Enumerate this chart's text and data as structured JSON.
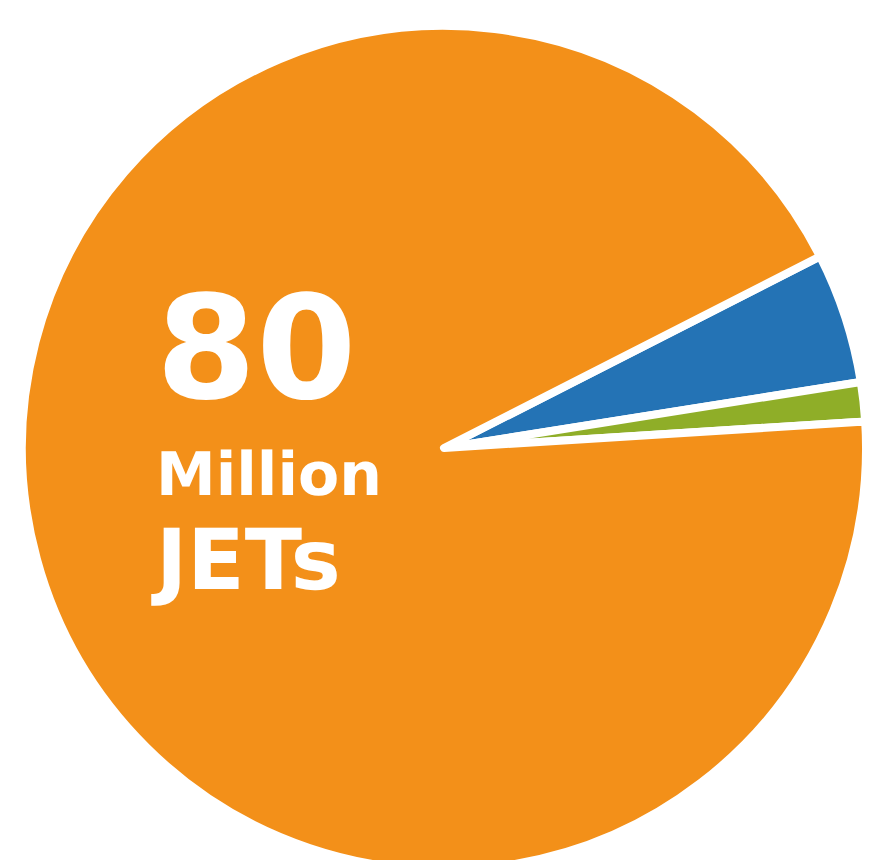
{
  "chart_data": {
    "type": "pie",
    "categories": [
      null,
      null,
      null
    ],
    "values": [
      5,
      1.5,
      93.5
    ],
    "colors": [
      "#2473b5",
      "#8fae28",
      "#f39019"
    ],
    "annotations": [
      "80",
      "Million",
      "JETs"
    ]
  }
}
